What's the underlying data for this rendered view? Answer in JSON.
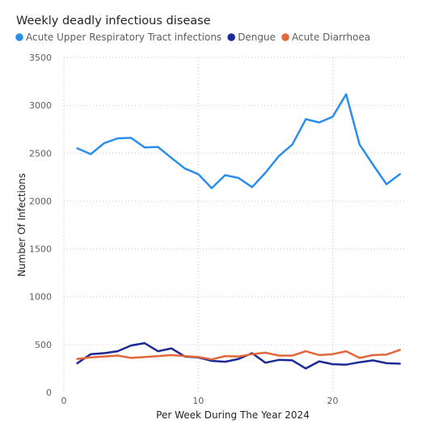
{
  "chart_data": {
    "type": "line",
    "title": "Weekly deadly infectious disease",
    "xlabel": "Per Week During The Year 2024",
    "ylabel": "Number Of Infections",
    "xlim": [
      0,
      25.5
    ],
    "ylim": [
      0,
      3500
    ],
    "x_ticks": [
      0,
      10,
      20
    ],
    "y_ticks": [
      0,
      500,
      1000,
      1500,
      2000,
      2500,
      3000,
      3500
    ],
    "grid": true,
    "legend_position": "top-left",
    "x": [
      1,
      2,
      3,
      4,
      5,
      6,
      7,
      8,
      9,
      10,
      11,
      12,
      13,
      14,
      15,
      16,
      17,
      18,
      19,
      20,
      21,
      22,
      23,
      24,
      25
    ],
    "series": [
      {
        "name": "Acute Upper Respiratory Tract infections",
        "color": "#2B8EEB",
        "values": [
          2550,
          2490,
          2605,
          2655,
          2660,
          2560,
          2565,
          2450,
          2340,
          2280,
          2135,
          2270,
          2240,
          2145,
          2295,
          2470,
          2590,
          2855,
          2820,
          2880,
          3115,
          2590,
          2380,
          2175,
          2280
        ]
      },
      {
        "name": "Dengue",
        "color": "#1B2A94",
        "values": [
          305,
          400,
          410,
          430,
          490,
          515,
          430,
          460,
          375,
          365,
          330,
          320,
          350,
          410,
          310,
          340,
          335,
          250,
          325,
          295,
          290,
          315,
          335,
          305,
          300
        ]
      },
      {
        "name": "Acute Diarrhoea",
        "color": "#E2683C",
        "values": [
          350,
          365,
          375,
          385,
          360,
          370,
          380,
          390,
          380,
          370,
          345,
          380,
          375,
          400,
          415,
          385,
          385,
          430,
          390,
          400,
          430,
          360,
          390,
          395,
          445
        ]
      }
    ]
  }
}
